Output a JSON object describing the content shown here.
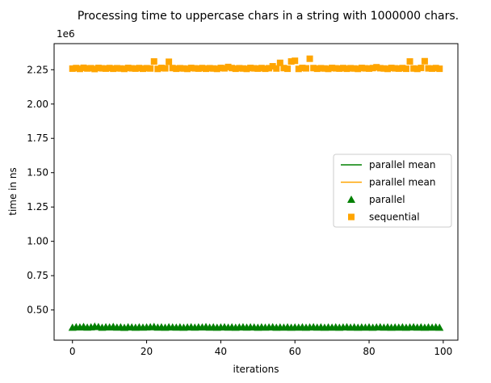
{
  "chart_data": {
    "type": "scatter",
    "title": "Processing time to uppercase chars in a string with 1000000 chars.",
    "xlabel": "iterations",
    "ylabel": "time in ns",
    "offset_label": "1e6",
    "xlim": [
      -4.95,
      103.95
    ],
    "ylim": [
      0.28,
      2.44
    ],
    "x_ticks": [
      0,
      20,
      40,
      60,
      80,
      100
    ],
    "x_tick_labels": [
      "0",
      "20",
      "40",
      "60",
      "80",
      "100"
    ],
    "y_ticks": [
      0.5,
      0.75,
      1.0,
      1.25,
      1.5,
      1.75,
      2.0,
      2.25
    ],
    "y_tick_labels": [
      "0.50",
      "0.75",
      "1.00",
      "1.25",
      "1.50",
      "1.75",
      "2.00",
      "2.25"
    ],
    "grid": false,
    "legend_position": "center-right",
    "legend": [
      {
        "label": "parallel mean",
        "kind": "line",
        "color": "#008000"
      },
      {
        "label": "parallel mean",
        "kind": "line",
        "color": "#ffa500"
      },
      {
        "label": "parallel",
        "kind": "triangle",
        "color": "#008000"
      },
      {
        "label": "sequential",
        "kind": "square",
        "color": "#ffa500"
      }
    ],
    "series": [
      {
        "name": "parallel",
        "marker": "triangle",
        "color": "#008000",
        "x": [
          0,
          1,
          2,
          3,
          4,
          5,
          6,
          7,
          8,
          9,
          10,
          11,
          12,
          13,
          14,
          15,
          16,
          17,
          18,
          19,
          20,
          21,
          22,
          23,
          24,
          25,
          26,
          27,
          28,
          29,
          30,
          31,
          32,
          33,
          34,
          35,
          36,
          37,
          38,
          39,
          40,
          41,
          42,
          43,
          44,
          45,
          46,
          47,
          48,
          49,
          50,
          51,
          52,
          53,
          54,
          55,
          56,
          57,
          58,
          59,
          60,
          61,
          62,
          63,
          64,
          65,
          66,
          67,
          68,
          69,
          70,
          71,
          72,
          73,
          74,
          75,
          76,
          77,
          78,
          79,
          80,
          81,
          82,
          83,
          84,
          85,
          86,
          87,
          88,
          89,
          90,
          91,
          92,
          93,
          94,
          95,
          96,
          97,
          98,
          99
        ],
        "y": [
          0.372,
          0.376,
          0.374,
          0.378,
          0.373,
          0.375,
          0.38,
          0.377,
          0.372,
          0.376,
          0.374,
          0.378,
          0.373,
          0.375,
          0.371,
          0.376,
          0.374,
          0.372,
          0.375,
          0.373,
          0.374,
          0.376,
          0.378,
          0.373,
          0.375,
          0.372,
          0.376,
          0.374,
          0.373,
          0.375,
          0.372,
          0.374,
          0.376,
          0.373,
          0.375,
          0.374,
          0.377,
          0.373,
          0.375,
          0.372,
          0.374,
          0.376,
          0.373,
          0.375,
          0.372,
          0.374,
          0.376,
          0.373,
          0.375,
          0.374,
          0.372,
          0.375,
          0.373,
          0.374,
          0.376,
          0.372,
          0.374,
          0.373,
          0.375,
          0.372,
          0.374,
          0.373,
          0.375,
          0.372,
          0.374,
          0.376,
          0.373,
          0.375,
          0.372,
          0.374,
          0.373,
          0.375,
          0.372,
          0.374,
          0.376,
          0.373,
          0.375,
          0.372,
          0.374,
          0.373,
          0.375,
          0.372,
          0.374,
          0.376,
          0.373,
          0.375,
          0.372,
          0.374,
          0.373,
          0.375,
          0.372,
          0.374,
          0.376,
          0.373,
          0.375,
          0.372,
          0.374,
          0.373,
          0.375,
          0.372
        ]
      },
      {
        "name": "sequential",
        "marker": "square",
        "color": "#ffa500",
        "x": [
          0,
          1,
          2,
          3,
          4,
          5,
          6,
          7,
          8,
          9,
          10,
          11,
          12,
          13,
          14,
          15,
          16,
          17,
          18,
          19,
          20,
          21,
          22,
          23,
          24,
          25,
          26,
          27,
          28,
          29,
          30,
          31,
          32,
          33,
          34,
          35,
          36,
          37,
          38,
          39,
          40,
          41,
          42,
          43,
          44,
          45,
          46,
          47,
          48,
          49,
          50,
          51,
          52,
          53,
          54,
          55,
          56,
          57,
          58,
          59,
          60,
          61,
          62,
          63,
          64,
          65,
          66,
          67,
          68,
          69,
          70,
          71,
          72,
          73,
          74,
          75,
          76,
          77,
          78,
          79,
          80,
          81,
          82,
          83,
          84,
          85,
          86,
          87,
          88,
          89,
          90,
          91,
          92,
          93,
          94,
          95,
          96,
          97,
          98,
          99
        ],
        "y": [
          2.258,
          2.262,
          2.256,
          2.264,
          2.259,
          2.261,
          2.255,
          2.263,
          2.26,
          2.258,
          2.262,
          2.257,
          2.261,
          2.259,
          2.256,
          2.263,
          2.26,
          2.258,
          2.262,
          2.257,
          2.261,
          2.259,
          2.31,
          2.256,
          2.263,
          2.26,
          2.308,
          2.262,
          2.257,
          2.261,
          2.259,
          2.256,
          2.263,
          2.26,
          2.258,
          2.262,
          2.257,
          2.261,
          2.259,
          2.256,
          2.263,
          2.26,
          2.27,
          2.262,
          2.257,
          2.261,
          2.259,
          2.256,
          2.263,
          2.26,
          2.258,
          2.262,
          2.257,
          2.261,
          2.275,
          2.259,
          2.3,
          2.262,
          2.257,
          2.31,
          2.315,
          2.256,
          2.263,
          2.26,
          2.33,
          2.262,
          2.257,
          2.261,
          2.259,
          2.256,
          2.263,
          2.26,
          2.258,
          2.262,
          2.257,
          2.261,
          2.259,
          2.256,
          2.263,
          2.26,
          2.258,
          2.262,
          2.268,
          2.261,
          2.259,
          2.256,
          2.263,
          2.26,
          2.258,
          2.262,
          2.257,
          2.31,
          2.259,
          2.256,
          2.263,
          2.312,
          2.26,
          2.258,
          2.262,
          2.257
        ]
      }
    ]
  }
}
